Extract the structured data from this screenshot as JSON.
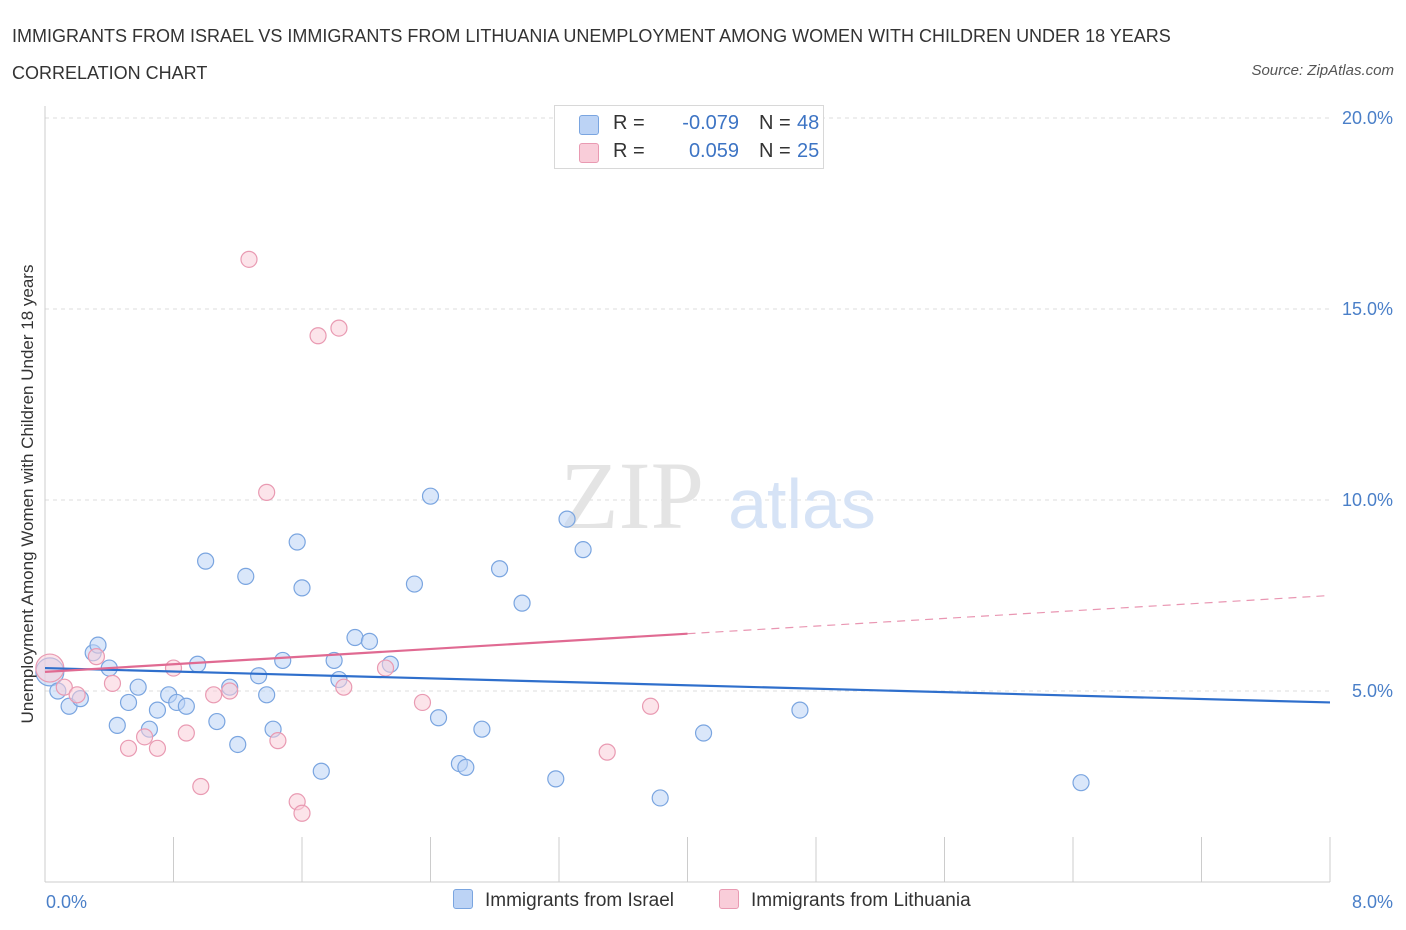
{
  "title": "IMMIGRANTS FROM ISRAEL VS IMMIGRANTS FROM LITHUANIA UNEMPLOYMENT AMONG WOMEN WITH CHILDREN UNDER 18 YEARS CORRELATION CHART",
  "source": "Source: ZipAtlas.com",
  "watermark": {
    "zip": "ZIP",
    "atlas": "atlas"
  },
  "legend": {
    "rows": [
      {
        "r_label": "R =",
        "r_value": "-0.079",
        "n_label": "N =",
        "n_value": "48"
      },
      {
        "r_label": "R =",
        "r_value": "0.059",
        "n_label": "N =",
        "n_value": "25"
      }
    ]
  },
  "colors": {
    "israel_fill": "#bcd3f5",
    "israel_stroke": "#7aa5e0",
    "israel_line": "#2f6fcc",
    "lithuania_fill": "#f9cdd9",
    "lithuania_stroke": "#e99ab2",
    "lithuania_line": "#e06a92",
    "tick": "#4a7fc8",
    "grid": "#dddddd"
  },
  "chart_data": {
    "type": "scatter",
    "ylabel": "Unemployment Among Women with Children Under 18 years",
    "xlabel": "",
    "xlim": [
      0,
      8
    ],
    "ylim": [
      0,
      20
    ],
    "x_tick_labels": [
      "0.0%",
      "8.0%"
    ],
    "y_ticks": [
      {
        "value": 5,
        "label": "5.0%"
      },
      {
        "value": 10,
        "label": "10.0%"
      },
      {
        "value": 15,
        "label": "15.0%"
      },
      {
        "value": 20,
        "label": "20.0%"
      }
    ],
    "grid": true,
    "legend_position": "bottom",
    "series": [
      {
        "name": "Immigrants from Israel",
        "trend": {
          "x0": 0,
          "y0": 5.6,
          "x1": 8,
          "y1": 4.7
        },
        "points": [
          [
            0.03,
            5.5
          ],
          [
            0.08,
            5.0
          ],
          [
            0.15,
            4.6
          ],
          [
            0.22,
            4.8
          ],
          [
            0.3,
            6.0
          ],
          [
            0.33,
            6.2
          ],
          [
            0.4,
            5.6
          ],
          [
            0.45,
            4.1
          ],
          [
            0.52,
            4.7
          ],
          [
            0.58,
            5.1
          ],
          [
            0.65,
            4.0
          ],
          [
            0.7,
            4.5
          ],
          [
            0.77,
            4.9
          ],
          [
            0.82,
            4.7
          ],
          [
            0.88,
            4.6
          ],
          [
            0.95,
            5.7
          ],
          [
            1.0,
            8.4
          ],
          [
            1.07,
            4.2
          ],
          [
            1.15,
            5.1
          ],
          [
            1.2,
            3.6
          ],
          [
            1.25,
            8.0
          ],
          [
            1.33,
            5.4
          ],
          [
            1.38,
            4.9
          ],
          [
            1.42,
            4.0
          ],
          [
            1.48,
            5.8
          ],
          [
            1.57,
            8.9
          ],
          [
            1.6,
            7.7
          ],
          [
            1.72,
            2.9
          ],
          [
            1.8,
            5.8
          ],
          [
            1.83,
            5.3
          ],
          [
            1.93,
            6.4
          ],
          [
            2.02,
            6.3
          ],
          [
            2.15,
            5.7
          ],
          [
            2.3,
            7.8
          ],
          [
            2.4,
            10.1
          ],
          [
            2.45,
            4.3
          ],
          [
            2.58,
            3.1
          ],
          [
            2.62,
            3.0
          ],
          [
            2.72,
            4.0
          ],
          [
            2.83,
            8.2
          ],
          [
            2.97,
            7.3
          ],
          [
            3.18,
            2.7
          ],
          [
            3.25,
            9.5
          ],
          [
            3.35,
            8.7
          ],
          [
            3.83,
            2.2
          ],
          [
            4.1,
            3.9
          ],
          [
            4.7,
            4.5
          ],
          [
            6.45,
            2.6
          ]
        ]
      },
      {
        "name": "Immigrants from Lithuania",
        "trend": {
          "x0": 0,
          "y0": 5.5,
          "x1": 4,
          "y1": 6.5,
          "dashed_to_x": 8,
          "dashed_to_y": 7.5
        },
        "points": [
          [
            0.03,
            5.6
          ],
          [
            0.12,
            5.1
          ],
          [
            0.2,
            4.9
          ],
          [
            0.32,
            5.9
          ],
          [
            0.42,
            5.2
          ],
          [
            0.52,
            3.5
          ],
          [
            0.62,
            3.8
          ],
          [
            0.7,
            3.5
          ],
          [
            0.8,
            5.6
          ],
          [
            0.88,
            3.9
          ],
          [
            0.97,
            2.5
          ],
          [
            1.05,
            4.9
          ],
          [
            1.15,
            5.0
          ],
          [
            1.27,
            16.3
          ],
          [
            1.38,
            10.2
          ],
          [
            1.45,
            3.7
          ],
          [
            1.57,
            2.1
          ],
          [
            1.6,
            1.8
          ],
          [
            1.7,
            14.3
          ],
          [
            1.83,
            14.5
          ],
          [
            1.86,
            5.1
          ],
          [
            2.12,
            5.6
          ],
          [
            2.35,
            4.7
          ],
          [
            3.5,
            3.4
          ],
          [
            3.77,
            4.6
          ]
        ]
      }
    ]
  },
  "bottom_legend": [
    "Immigrants from Israel",
    "Immigrants from Lithuania"
  ]
}
